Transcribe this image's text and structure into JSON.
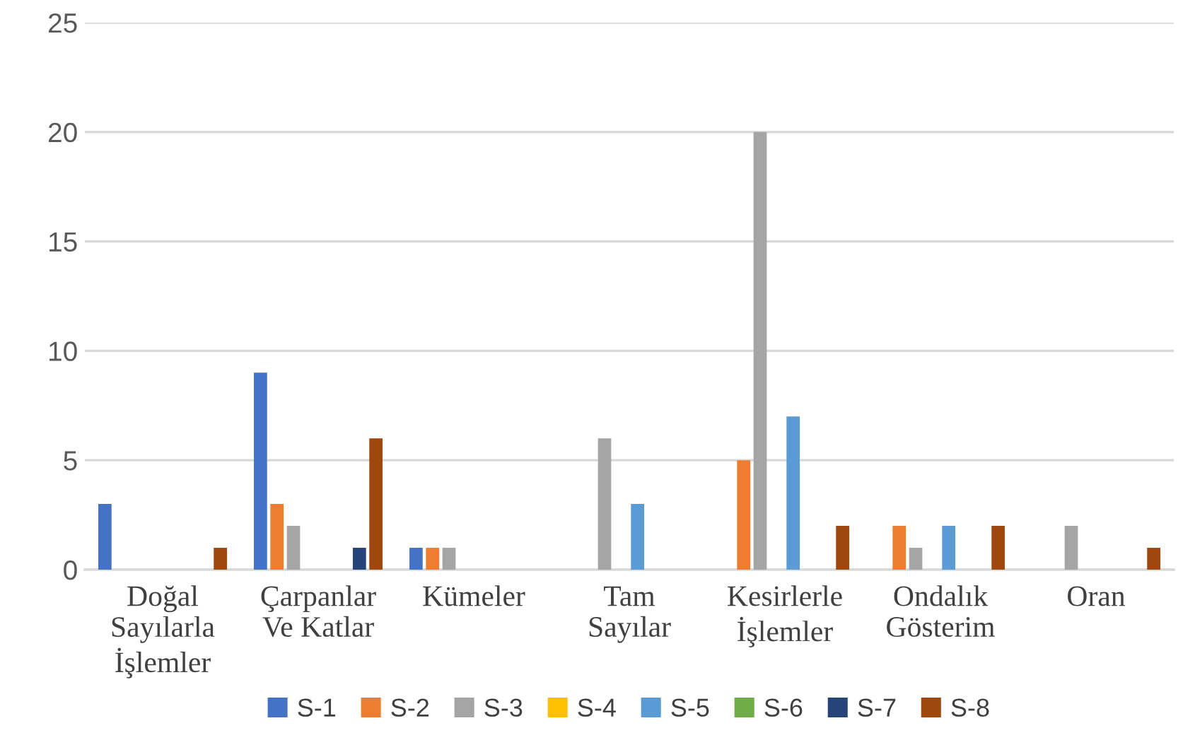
{
  "chart_data": {
    "type": "bar",
    "categories": [
      "Doğal\nSayılarla\nİşlemler",
      "Çarpanlar\nVe Katlar",
      "Kümeler",
      "Tam\nSayılar",
      "Kesirlerle\nİşlemler",
      "Ondalık\nGösterim",
      "Oran"
    ],
    "series": [
      {
        "name": "S-1",
        "color": "#4472c4",
        "values": [
          3,
          9,
          1,
          0,
          0,
          0,
          0
        ]
      },
      {
        "name": "S-2",
        "color": "#ed7d31",
        "values": [
          0,
          3,
          1,
          0,
          5,
          2,
          0
        ]
      },
      {
        "name": "S-3",
        "color": "#a5a5a5",
        "values": [
          0,
          2,
          1,
          6,
          20,
          1,
          2
        ]
      },
      {
        "name": "S-4",
        "color": "#ffc000",
        "values": [
          0,
          0,
          0,
          0,
          0,
          0,
          0
        ]
      },
      {
        "name": "S-5",
        "color": "#5b9bd5",
        "values": [
          0,
          0,
          0,
          3,
          7,
          2,
          0
        ]
      },
      {
        "name": "S-6",
        "color": "#70ad47",
        "values": [
          0,
          0,
          0,
          0,
          0,
          0,
          0
        ]
      },
      {
        "name": "S-7",
        "color": "#264478",
        "values": [
          0,
          1,
          0,
          0,
          0,
          0,
          0
        ]
      },
      {
        "name": "S-8",
        "color": "#9e480e",
        "values": [
          1,
          6,
          0,
          0,
          2,
          2,
          1
        ]
      }
    ],
    "ylim": [
      0,
      25
    ],
    "yticks": [
      0,
      5,
      10,
      15,
      20,
      25
    ],
    "grid": "y",
    "legend": "bottom"
  }
}
